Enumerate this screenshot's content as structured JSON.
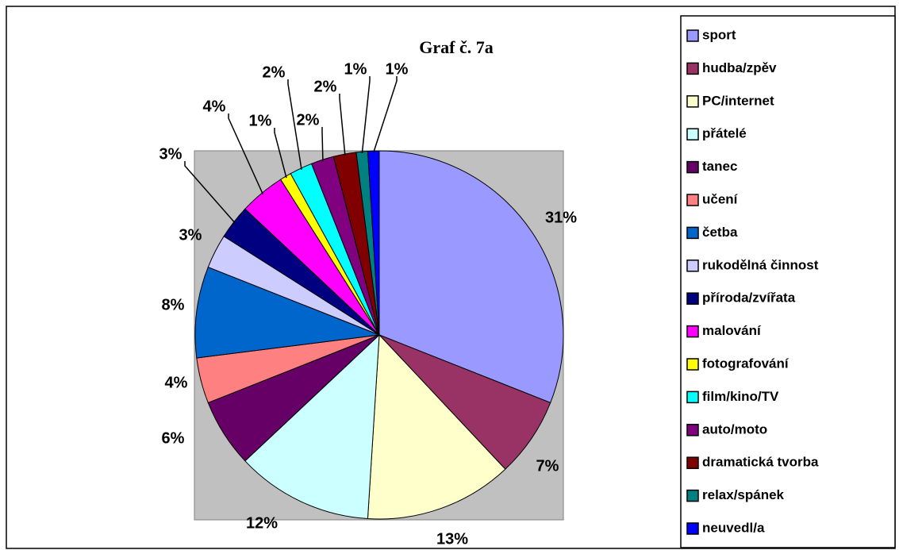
{
  "chart_data": {
    "type": "pie",
    "title": "Graf č. 7a",
    "categories": [
      "sport",
      "hudba/zpěv",
      "PC/internet",
      "přátelé",
      "tanec",
      "učení",
      "četba",
      "rukodělná činnost",
      "příroda/zvířata",
      "malování",
      "fotografování",
      "film/kino/TV",
      "auto/moto",
      "dramatická tvorba",
      "relax/spánek",
      "neuvedl/a"
    ],
    "values": [
      31,
      7,
      13,
      12,
      6,
      4,
      8,
      3,
      3,
      4,
      1,
      2,
      2,
      2,
      1,
      1
    ],
    "value_labels": [
      "31%",
      "7%",
      "13%",
      "12%",
      "6%",
      "4%",
      "8%",
      "3%",
      "3%",
      "4%",
      "1%",
      "2%",
      "2%",
      "2%",
      "1%",
      "1%"
    ],
    "colors": [
      "#9999ff",
      "#993366",
      "#ffffcc",
      "#ccffff",
      "#660066",
      "#ff8080",
      "#0066cc",
      "#ccccff",
      "#000080",
      "#ff00ff",
      "#ffff00",
      "#00ffff",
      "#800080",
      "#800000",
      "#008080",
      "#0000ff"
    ],
    "legend": "right"
  }
}
